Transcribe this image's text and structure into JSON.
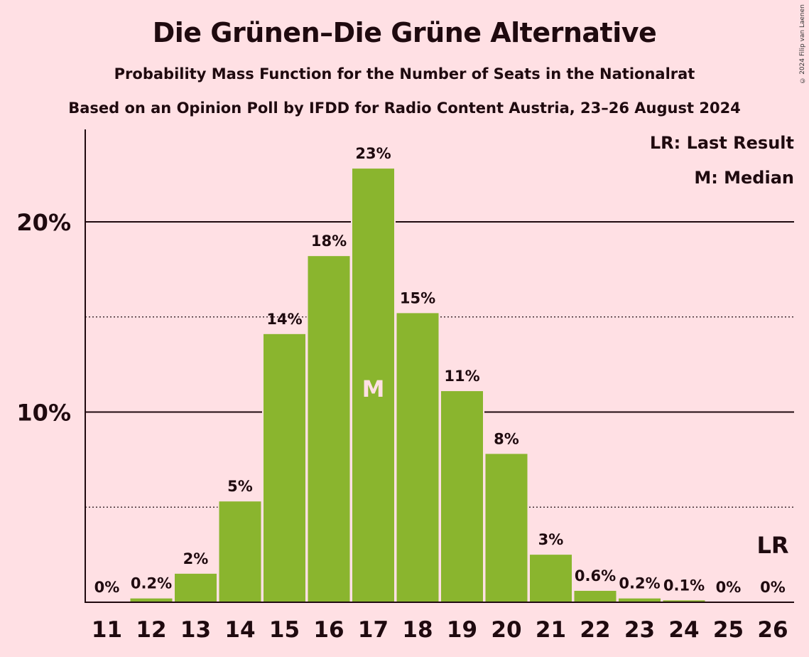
{
  "title": "Die Grünen–Die Grüne Alternative",
  "subtitle": "Probability Mass Function for the Number of Seats in the Nationalrat",
  "subtitle2": "Based on an Opinion Poll by IFDD for Radio Content Austria, 23–26 August 2024",
  "copyright": "© 2024 Filip van Laenen",
  "legend": {
    "last_result": "LR: Last Result",
    "median": "M: Median"
  },
  "colors": {
    "background": "#ffe0e4",
    "bar": "#8ab52e",
    "text": "#1f0a0f"
  },
  "chart_data": {
    "type": "bar",
    "categories": [
      "11",
      "12",
      "13",
      "14",
      "15",
      "16",
      "17",
      "18",
      "19",
      "20",
      "21",
      "22",
      "23",
      "24",
      "25",
      "26"
    ],
    "values": [
      0,
      0.2,
      1.5,
      5.3,
      14.1,
      18.2,
      22.8,
      15.2,
      11.1,
      7.8,
      2.5,
      0.6,
      0.2,
      0.1,
      0,
      0
    ],
    "data_labels": [
      "0%",
      "0.2%",
      "2%",
      "5%",
      "14%",
      "18%",
      "23%",
      "15%",
      "11%",
      "8%",
      "3%",
      "0.6%",
      "0.2%",
      "0.1%",
      "0%",
      "0%"
    ],
    "yticks": [
      {
        "value": 10,
        "label": "10%"
      },
      {
        "value": 20,
        "label": "20%"
      }
    ],
    "minor_gridlines": [
      5,
      15
    ],
    "ylim": [
      0,
      25
    ],
    "median_category": "17",
    "median_marker": "M",
    "last_result_category": "26",
    "last_result_marker": "LR",
    "legend_position": "top-right"
  }
}
